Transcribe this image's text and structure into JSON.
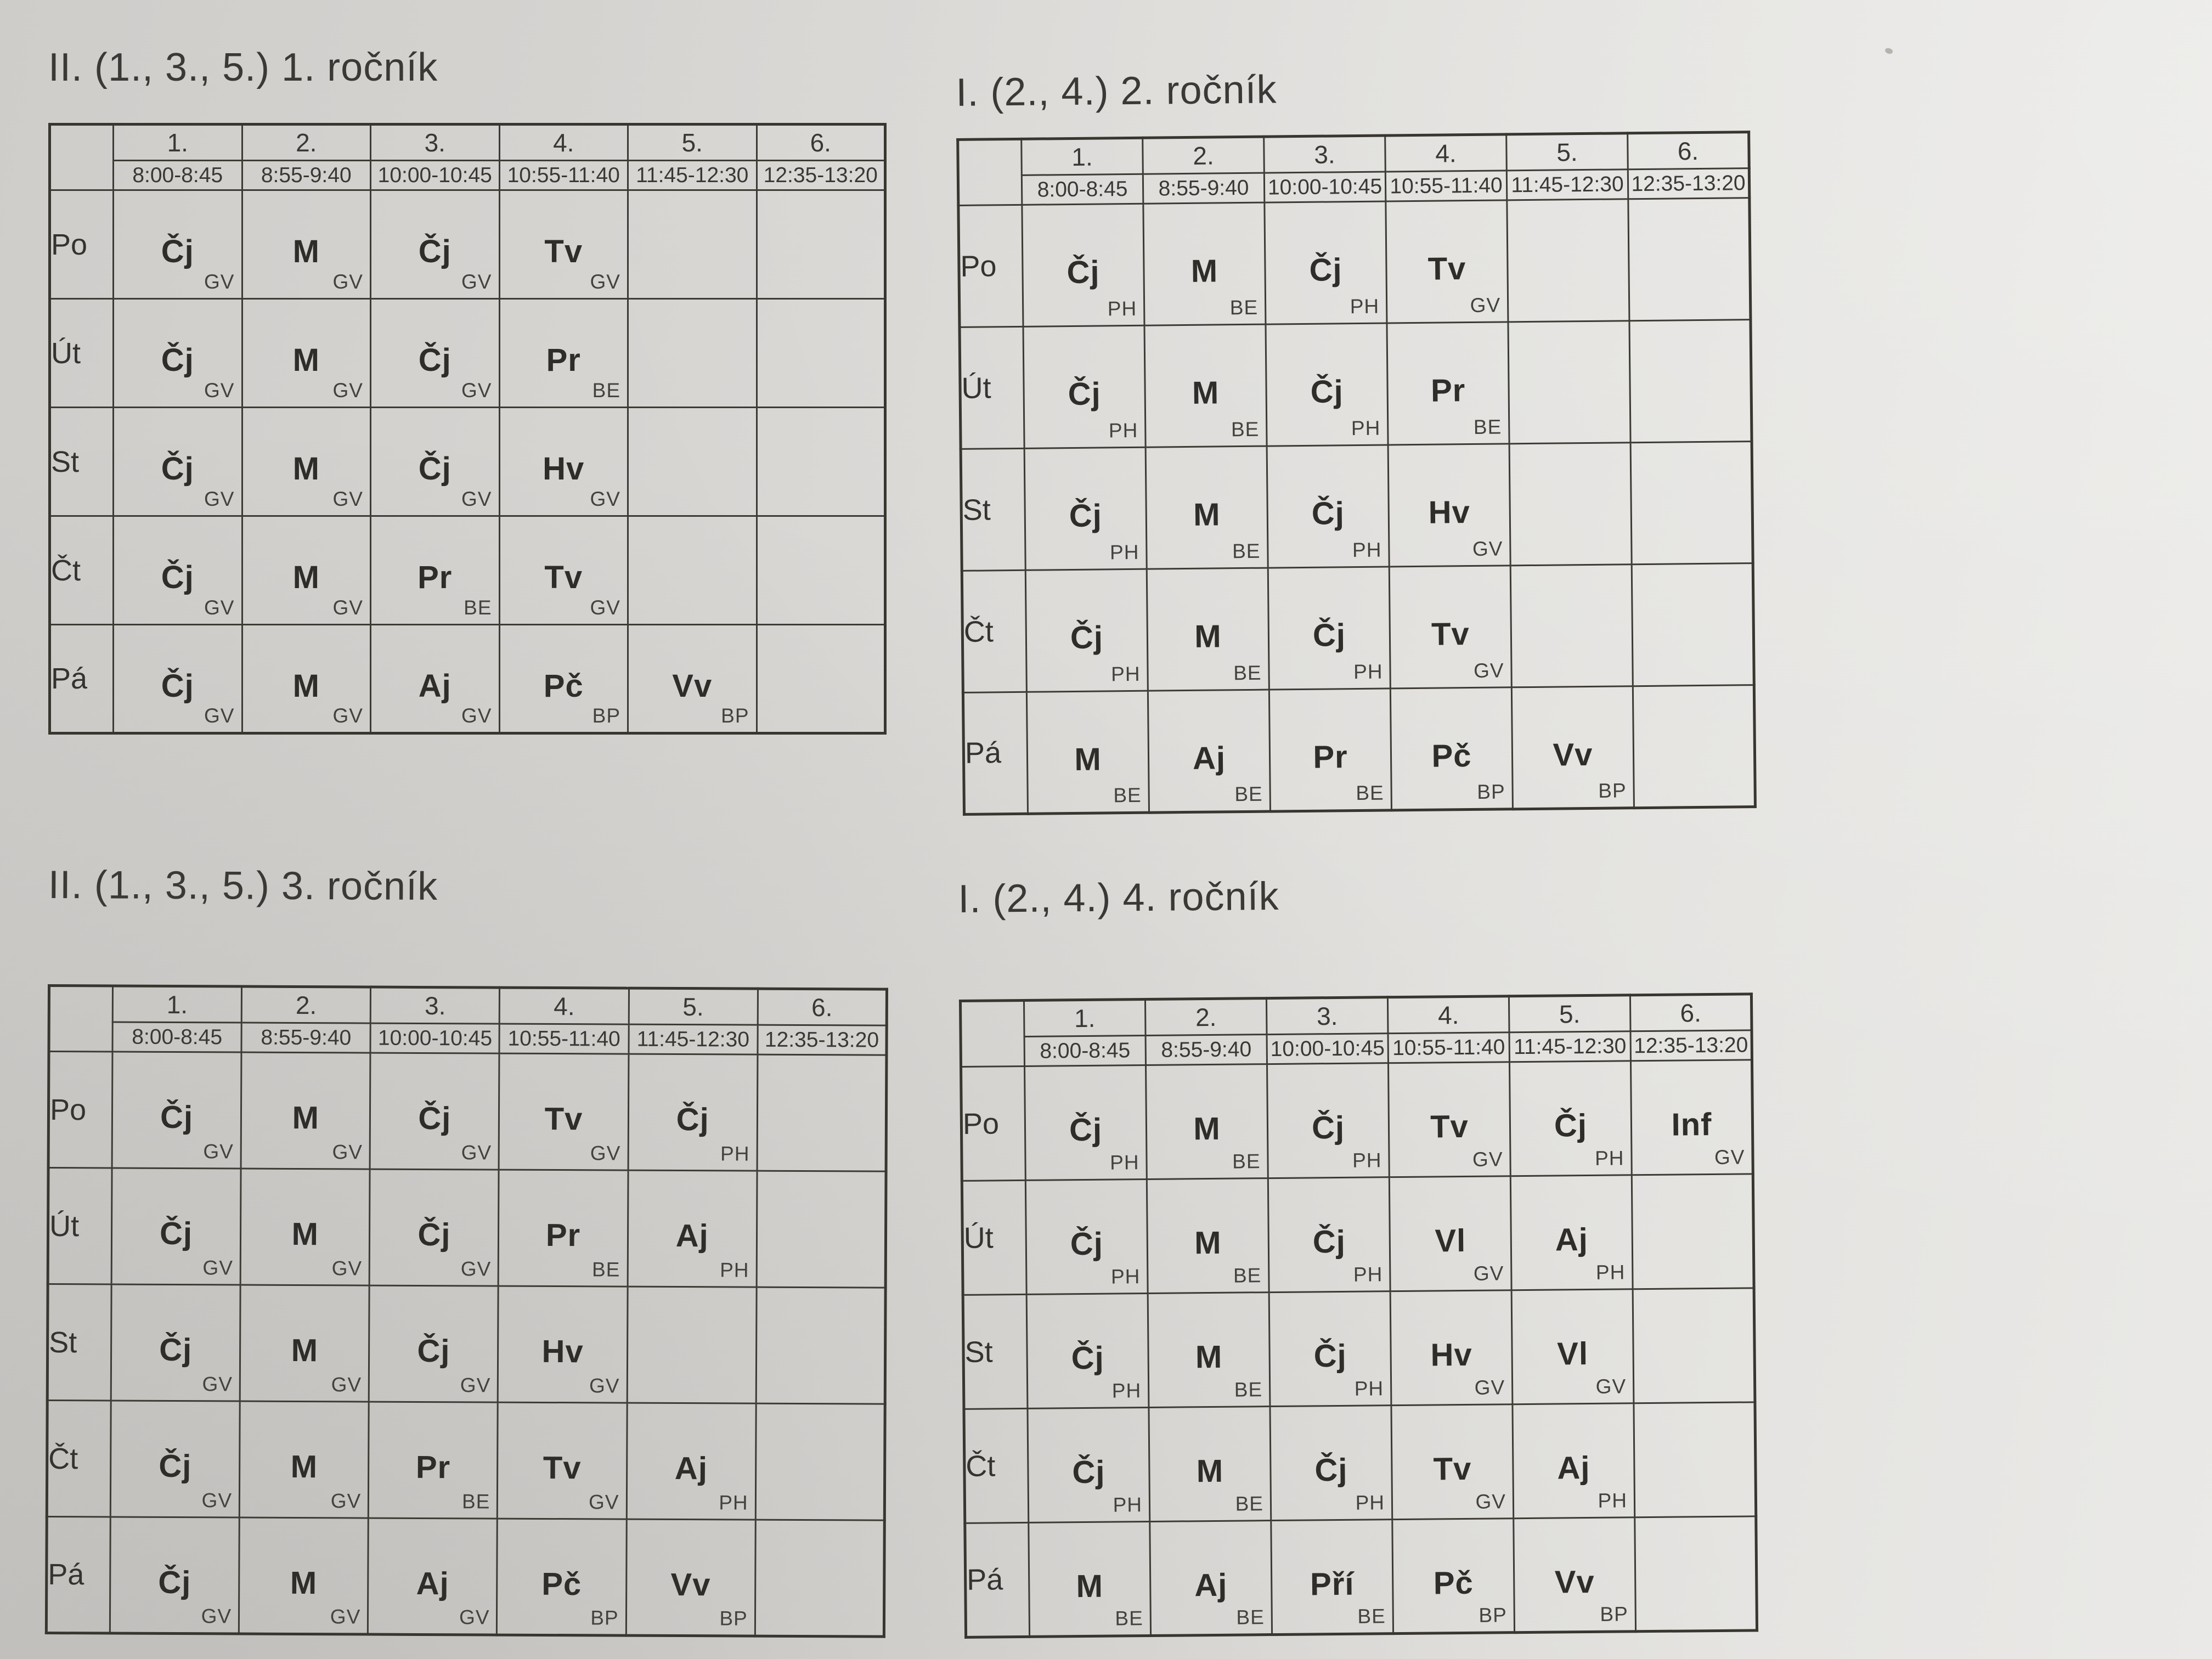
{
  "timetables": [
    {
      "title": "II. (1., 3., 5.) 1. ročník",
      "periods": [
        "1.",
        "2.",
        "3.",
        "4.",
        "5.",
        "6."
      ],
      "times": [
        "8:00-8:45",
        "8:55-9:40",
        "10:00-10:45",
        "10:55-11:40",
        "11:45-12:30",
        "12:35-13:20"
      ],
      "days": [
        "Po",
        "Út",
        "St",
        "Čt",
        "Pá"
      ],
      "rows": [
        [
          {
            "subject": "Čj",
            "teacher": "GV"
          },
          {
            "subject": "M",
            "teacher": "GV"
          },
          {
            "subject": "Čj",
            "teacher": "GV"
          },
          {
            "subject": "Tv",
            "teacher": "GV"
          },
          null,
          null
        ],
        [
          {
            "subject": "Čj",
            "teacher": "GV"
          },
          {
            "subject": "M",
            "teacher": "GV"
          },
          {
            "subject": "Čj",
            "teacher": "GV"
          },
          {
            "subject": "Pr",
            "teacher": "BE"
          },
          null,
          null
        ],
        [
          {
            "subject": "Čj",
            "teacher": "GV"
          },
          {
            "subject": "M",
            "teacher": "GV"
          },
          {
            "subject": "Čj",
            "teacher": "GV"
          },
          {
            "subject": "Hv",
            "teacher": "GV"
          },
          null,
          null
        ],
        [
          {
            "subject": "Čj",
            "teacher": "GV"
          },
          {
            "subject": "M",
            "teacher": "GV"
          },
          {
            "subject": "Pr",
            "teacher": "BE"
          },
          {
            "subject": "Tv",
            "teacher": "GV"
          },
          null,
          null
        ],
        [
          {
            "subject": "Čj",
            "teacher": "GV"
          },
          {
            "subject": "M",
            "teacher": "GV"
          },
          {
            "subject": "Aj",
            "teacher": "GV"
          },
          {
            "subject": "Pč",
            "teacher": "BP"
          },
          {
            "subject": "Vv",
            "teacher": "BP"
          },
          null
        ]
      ]
    },
    {
      "title": "I. (2., 4.) 2. ročník",
      "periods": [
        "1.",
        "2.",
        "3.",
        "4.",
        "5.",
        "6."
      ],
      "times": [
        "8:00-8:45",
        "8:55-9:40",
        "10:00-10:45",
        "10:55-11:40",
        "11:45-12:30",
        "12:35-13:20"
      ],
      "days": [
        "Po",
        "Út",
        "St",
        "Čt",
        "Pá"
      ],
      "rows": [
        [
          {
            "subject": "Čj",
            "teacher": "PH"
          },
          {
            "subject": "M",
            "teacher": "BE"
          },
          {
            "subject": "Čj",
            "teacher": "PH"
          },
          {
            "subject": "Tv",
            "teacher": "GV"
          },
          null,
          null
        ],
        [
          {
            "subject": "Čj",
            "teacher": "PH"
          },
          {
            "subject": "M",
            "teacher": "BE"
          },
          {
            "subject": "Čj",
            "teacher": "PH"
          },
          {
            "subject": "Pr",
            "teacher": "BE"
          },
          null,
          null
        ],
        [
          {
            "subject": "Čj",
            "teacher": "PH"
          },
          {
            "subject": "M",
            "teacher": "BE"
          },
          {
            "subject": "Čj",
            "teacher": "PH"
          },
          {
            "subject": "Hv",
            "teacher": "GV"
          },
          null,
          null
        ],
        [
          {
            "subject": "Čj",
            "teacher": "PH"
          },
          {
            "subject": "M",
            "teacher": "BE"
          },
          {
            "subject": "Čj",
            "teacher": "PH"
          },
          {
            "subject": "Tv",
            "teacher": "GV"
          },
          null,
          null
        ],
        [
          {
            "subject": "M",
            "teacher": "BE"
          },
          {
            "subject": "Aj",
            "teacher": "BE"
          },
          {
            "subject": "Pr",
            "teacher": "BE"
          },
          {
            "subject": "Pč",
            "teacher": "BP"
          },
          {
            "subject": "Vv",
            "teacher": "BP"
          },
          null
        ]
      ]
    },
    {
      "title": "II. (1., 3., 5.) 3. ročník",
      "periods": [
        "1.",
        "2.",
        "3.",
        "4.",
        "5.",
        "6."
      ],
      "times": [
        "8:00-8:45",
        "8:55-9:40",
        "10:00-10:45",
        "10:55-11:40",
        "11:45-12:30",
        "12:35-13:20"
      ],
      "days": [
        "Po",
        "Út",
        "St",
        "Čt",
        "Pá"
      ],
      "rows": [
        [
          {
            "subject": "Čj",
            "teacher": "GV"
          },
          {
            "subject": "M",
            "teacher": "GV"
          },
          {
            "subject": "Čj",
            "teacher": "GV"
          },
          {
            "subject": "Tv",
            "teacher": "GV"
          },
          {
            "subject": "Čj",
            "teacher": "PH"
          },
          null
        ],
        [
          {
            "subject": "Čj",
            "teacher": "GV"
          },
          {
            "subject": "M",
            "teacher": "GV"
          },
          {
            "subject": "Čj",
            "teacher": "GV"
          },
          {
            "subject": "Pr",
            "teacher": "BE"
          },
          {
            "subject": "Aj",
            "teacher": "PH"
          },
          null
        ],
        [
          {
            "subject": "Čj",
            "teacher": "GV"
          },
          {
            "subject": "M",
            "teacher": "GV"
          },
          {
            "subject": "Čj",
            "teacher": "GV"
          },
          {
            "subject": "Hv",
            "teacher": "GV"
          },
          null,
          null
        ],
        [
          {
            "subject": "Čj",
            "teacher": "GV"
          },
          {
            "subject": "M",
            "teacher": "GV"
          },
          {
            "subject": "Pr",
            "teacher": "BE"
          },
          {
            "subject": "Tv",
            "teacher": "GV"
          },
          {
            "subject": "Aj",
            "teacher": "PH"
          },
          null
        ],
        [
          {
            "subject": "Čj",
            "teacher": "GV"
          },
          {
            "subject": "M",
            "teacher": "GV"
          },
          {
            "subject": "Aj",
            "teacher": "GV"
          },
          {
            "subject": "Pč",
            "teacher": "BP"
          },
          {
            "subject": "Vv",
            "teacher": "BP"
          },
          null
        ]
      ]
    },
    {
      "title": "I. (2., 4.) 4. ročník",
      "periods": [
        "1.",
        "2.",
        "3.",
        "4.",
        "5.",
        "6."
      ],
      "times": [
        "8:00-8:45",
        "8:55-9:40",
        "10:00-10:45",
        "10:55-11:40",
        "11:45-12:30",
        "12:35-13:20"
      ],
      "days": [
        "Po",
        "Út",
        "St",
        "Čt",
        "Pá"
      ],
      "rows": [
        [
          {
            "subject": "Čj",
            "teacher": "PH"
          },
          {
            "subject": "M",
            "teacher": "BE"
          },
          {
            "subject": "Čj",
            "teacher": "PH"
          },
          {
            "subject": "Tv",
            "teacher": "GV"
          },
          {
            "subject": "Čj",
            "teacher": "PH"
          },
          {
            "subject": "Inf",
            "teacher": "GV"
          }
        ],
        [
          {
            "subject": "Čj",
            "teacher": "PH"
          },
          {
            "subject": "M",
            "teacher": "BE"
          },
          {
            "subject": "Čj",
            "teacher": "PH"
          },
          {
            "subject": "Vl",
            "teacher": "GV"
          },
          {
            "subject": "Aj",
            "teacher": "PH"
          },
          null
        ],
        [
          {
            "subject": "Čj",
            "teacher": "PH"
          },
          {
            "subject": "M",
            "teacher": "BE"
          },
          {
            "subject": "Čj",
            "teacher": "PH"
          },
          {
            "subject": "Hv",
            "teacher": "GV"
          },
          {
            "subject": "Vl",
            "teacher": "GV"
          },
          null
        ],
        [
          {
            "subject": "Čj",
            "teacher": "PH"
          },
          {
            "subject": "M",
            "teacher": "BE"
          },
          {
            "subject": "Čj",
            "teacher": "PH"
          },
          {
            "subject": "Tv",
            "teacher": "GV"
          },
          {
            "subject": "Aj",
            "teacher": "PH"
          },
          null
        ],
        [
          {
            "subject": "M",
            "teacher": "BE"
          },
          {
            "subject": "Aj",
            "teacher": "BE"
          },
          {
            "subject": "Pří",
            "teacher": "BE"
          },
          {
            "subject": "Pč",
            "teacher": "BP"
          },
          {
            "subject": "Vv",
            "teacher": "BP"
          },
          null
        ]
      ]
    }
  ]
}
